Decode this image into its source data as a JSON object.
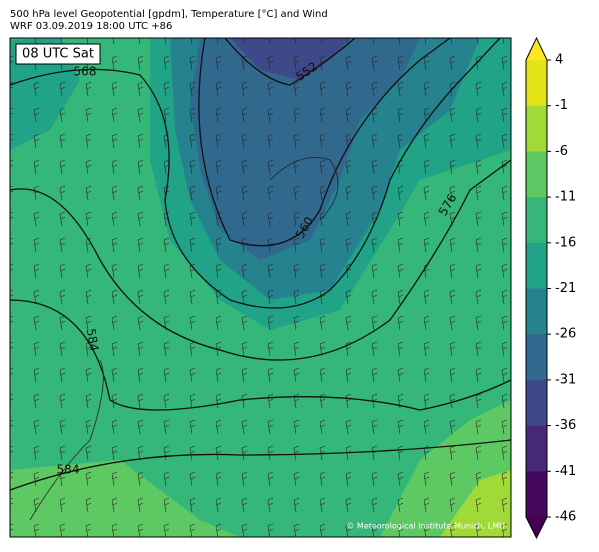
{
  "header": {
    "title": "500 hPa level Geopotential [gpdm], Temperature [°C] and Wind",
    "subtitle": "WRF 03.09.2019 18:00 UTC +86"
  },
  "map": {
    "time_label": "08 UTC Sat",
    "contour_labels": [
      "568",
      "552",
      "560",
      "576",
      "584",
      "584"
    ],
    "credit": "© Meteorological Institute Munich, LMU"
  },
  "colorbar": {
    "ticks": [
      4,
      -1,
      -6,
      -11,
      -16,
      -21,
      -26,
      -31,
      -36,
      -41,
      -46
    ],
    "colors": [
      "#e5e419",
      "#a0da39",
      "#5ec962",
      "#35b779",
      "#20a386",
      "#26828e",
      "#31688e",
      "#3e4989",
      "#482878",
      "#46085c"
    ],
    "over_color": "#fde725",
    "under_color": "#440154"
  }
}
